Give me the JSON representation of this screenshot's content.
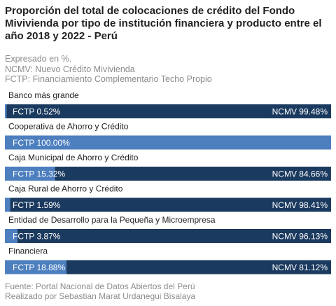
{
  "title": "Proporción del total de colocaciones de crédito del Fondo Mivivienda por tipo de institución financiera y producto entre el año 2018 y 2022 - Perú",
  "subtitle_lines": [
    "Expresado en %.",
    "NCMV: Nuevo Crédito Mivivienda",
    "FCTP: Financiamiento Complementario Techo Propio"
  ],
  "caption_lines": [
    "Fuente: Portal Nacional de Datos Abiertos del Perú",
    "Realizado por Sebastian Marat Urdanegui Bisalaya"
  ],
  "colors": {
    "ncmv": "#1b3a5f",
    "fctp": "#4d7fbf"
  },
  "chart_data": {
    "type": "bar",
    "orientation": "horizontal",
    "stacked": true,
    "categories": [
      "Banco más grande",
      "Cooperativa de Ahorro y Crédito",
      "Caja Municipal de Ahorro y Crédito",
      "Caja Rural de Ahorro y Crédito",
      "Entidad de Desarrollo para la Pequeña y Microempresa",
      "Financiera"
    ],
    "series": [
      {
        "name": "FCTP",
        "values": [
          0.52,
          100.0,
          15.32,
          1.59,
          3.87,
          18.88
        ],
        "labels": [
          "FCTP 0.52%",
          "FCTP 100.00%",
          "FCTP 15.32%",
          "FCTP 1.59%",
          "FCTP 3.87%",
          "FCTP 18.88%"
        ]
      },
      {
        "name": "NCMV",
        "values": [
          99.48,
          0.0,
          84.66,
          98.41,
          96.13,
          81.12
        ],
        "labels": [
          "NCMV 99.48%",
          "",
          "NCMV 84.66%",
          "NCMV 98.41%",
          "NCMV 96.13%",
          "NCMV 81.12%"
        ]
      }
    ],
    "xlim": [
      0,
      100
    ],
    "grid": false,
    "legend": "none"
  }
}
